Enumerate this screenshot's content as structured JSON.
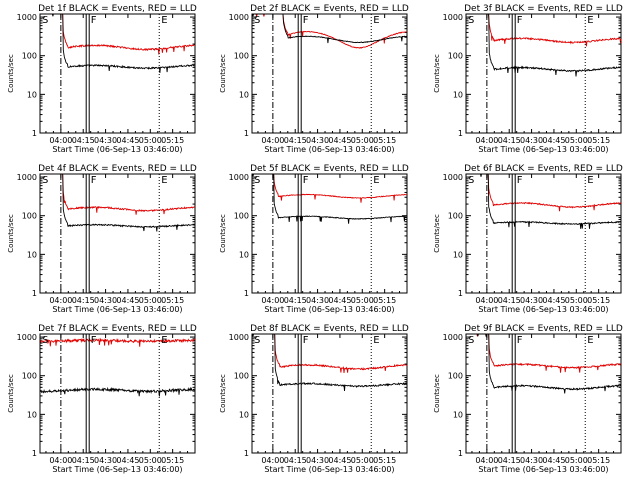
{
  "chart_data": {
    "type": "line",
    "layout": "3x3 grid",
    "x_axis": {
      "label": "Start Time (06-Sep-13 03:46:00)",
      "tick_labels": [
        "04:00",
        "04:15",
        "04:30",
        "04:45",
        "05:00",
        "05:15"
      ],
      "tick_values_min": [
        0,
        15,
        30,
        45,
        60,
        75
      ],
      "range_min": [
        -14,
        90
      ]
    },
    "y_axis": {
      "label": "Counts/sec",
      "scale": "log",
      "tick_labels": [
        "1",
        "10",
        "100",
        "1000"
      ],
      "tick_values": [
        1,
        10,
        100,
        1000
      ],
      "range": [
        1,
        1200
      ]
    },
    "series_legend": {
      "events": "BLACK = Events",
      "lld": "RED = LLD",
      "events_color": "#000000",
      "lld_color": "#e00000"
    },
    "markers": [
      {
        "label": "S",
        "t": -14,
        "style": "solid"
      },
      {
        "label": "F",
        "t": 18,
        "style": "double"
      },
      {
        "label": "E",
        "t": 66,
        "style": "dotted"
      }
    ],
    "extra_lines": [
      {
        "t": 0,
        "style": "dash-dot"
      },
      {
        "t": 90,
        "style": "dotted"
      }
    ],
    "panels": [
      {
        "title": "Det 1f BLACK = Events, RED = LLD",
        "events_level": 52,
        "lld_level": 165,
        "lld_bump": 0.12,
        "events_bump": 0.08,
        "drop_t": 1.5,
        "noise": 0.045
      },
      {
        "title": "Det 2f BLACK = Events, RED = LLD",
        "events_level": 270,
        "lld_level": 290,
        "lld_bump": 0.45,
        "events_bump": 0.18,
        "drop_t": 7,
        "noise": 0.02
      },
      {
        "title": "Det 3f BLACK = Events, RED = LLD",
        "events_level": 45,
        "lld_level": 250,
        "lld_bump": 0.12,
        "events_bump": 0.1,
        "drop_t": 1.5,
        "noise": 0.045
      },
      {
        "title": "Det 4f BLACK = Events, RED = LLD",
        "events_level": 55,
        "lld_level": 150,
        "lld_bump": 0.1,
        "events_bump": 0.06,
        "drop_t": 1.5,
        "noise": 0.04
      },
      {
        "title": "Det 5f BLACK = Events, RED = LLD",
        "events_level": 90,
        "lld_level": 320,
        "lld_bump": 0.1,
        "events_bump": 0.08,
        "drop_t": 0.6,
        "noise": 0.02
      },
      {
        "title": "Det 6f BLACK = Events, RED = LLD",
        "events_level": 65,
        "lld_level": 190,
        "lld_bump": 0.12,
        "events_bump": 0.06,
        "drop_t": 1.2,
        "noise": 0.035
      },
      {
        "title": "Det 7f BLACK = Events, RED = LLD",
        "events_level": 42,
        "lld_level": 800,
        "lld_bump": 0.03,
        "events_bump": 0.06,
        "drop_t": -20,
        "noise": 0.07
      },
      {
        "title": "Det 8f BLACK = Events, RED = LLD",
        "events_level": 58,
        "lld_level": 170,
        "lld_bump": 0.12,
        "events_bump": 0.08,
        "drop_t": 1.5,
        "noise": 0.045
      },
      {
        "title": "Det 9f BLACK = Events, RED = LLD",
        "events_level": 50,
        "lld_level": 180,
        "lld_bump": 0.1,
        "events_bump": 0.1,
        "drop_t": 1.5,
        "noise": 0.045
      }
    ]
  }
}
